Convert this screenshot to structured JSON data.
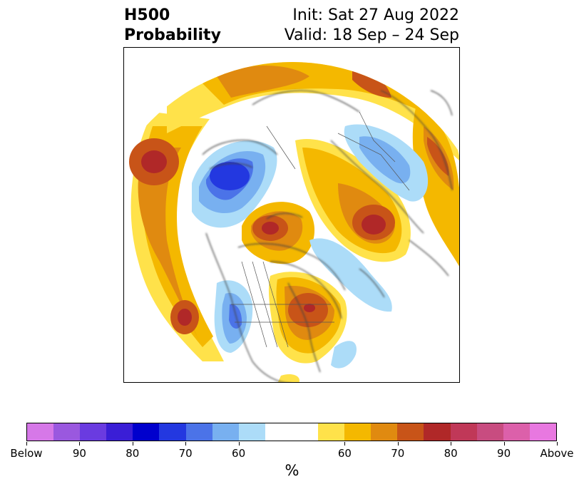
{
  "title": {
    "left_line1": "H500",
    "left_line2": "Probability",
    "right_line1": "Init: Sat 27 Aug 2022",
    "right_line2": "Valid: 18 Sep – 24 Sep"
  },
  "colorbar": {
    "colors": [
      "#d678e8",
      "#9a58df",
      "#6a3be0",
      "#3a1ed6",
      "#0000cd",
      "#2338e0",
      "#4b73e8",
      "#78b0f0",
      "#acdcf8",
      "#ffffff",
      "#ffffff",
      "#ffe24a",
      "#f4b800",
      "#e08a10",
      "#c85418",
      "#b02828",
      "#c03858",
      "#c84c80",
      "#dc60aa",
      "#e878e0"
    ],
    "tick_labels": [
      "Below",
      "90",
      "80",
      "70",
      "60",
      "60",
      "70",
      "80",
      "90",
      "Above"
    ],
    "unit": "%"
  }
}
